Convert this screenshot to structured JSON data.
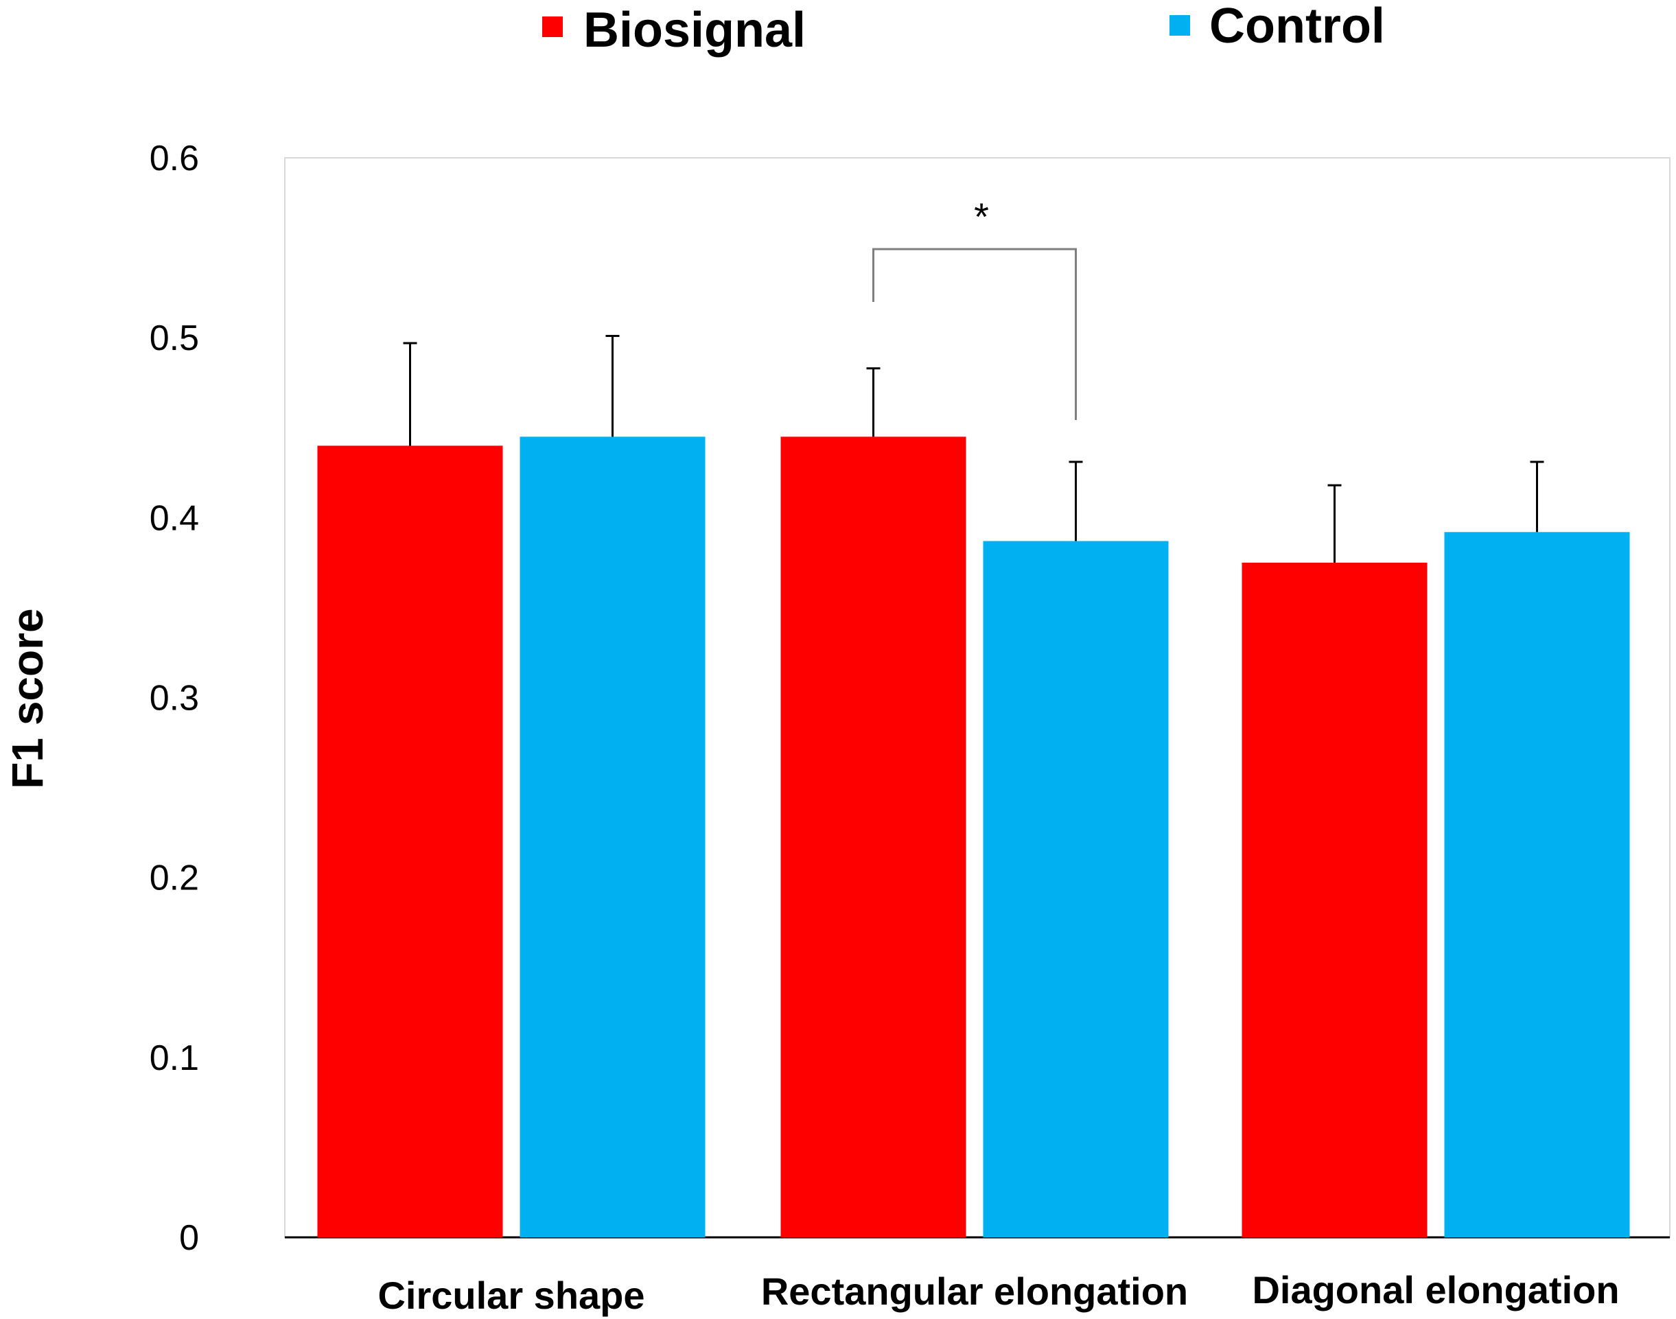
{
  "chart_data": {
    "type": "bar",
    "title": "",
    "xlabel": "",
    "ylabel": "F1 score",
    "ylim": [
      0,
      0.6
    ],
    "yticks": [
      "0",
      "0.1",
      "0.2",
      "0.3",
      "0.4",
      "0.5",
      "0.6"
    ],
    "grid": false,
    "legend_position": "top",
    "categories": [
      "Circular shape",
      "Rectangular elongation",
      "Diagonal elongation"
    ],
    "series": [
      {
        "name": "Biosignal",
        "color": "#ff0000",
        "values": [
          0.44,
          0.445,
          0.375
        ],
        "errors": [
          0.057,
          0.038,
          0.043
        ]
      },
      {
        "name": "Control",
        "color": "#00b0f0",
        "values": [
          0.445,
          0.387,
          0.392
        ],
        "errors": [
          0.056,
          0.044,
          0.039
        ]
      }
    ],
    "annotations": [
      {
        "type": "significance",
        "label": "*",
        "category": "Rectangular elongation",
        "between_series": [
          "Biosignal",
          "Control"
        ]
      }
    ]
  }
}
